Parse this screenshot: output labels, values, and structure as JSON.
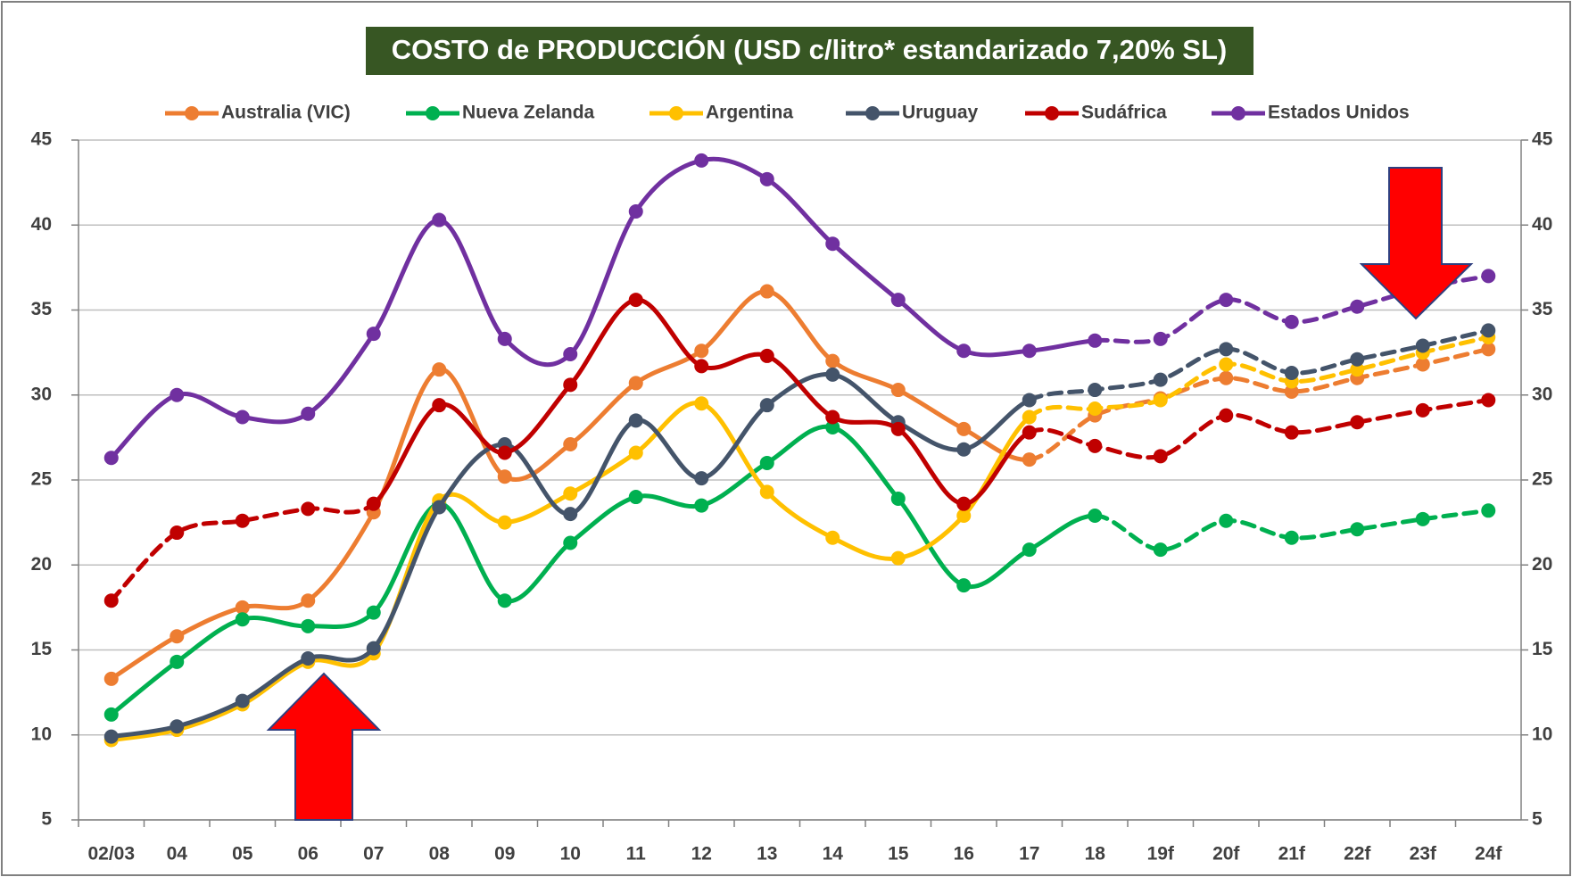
{
  "chart_data": {
    "type": "line",
    "title": "COSTO de PRODUCCIÓN (USD c/litro* estandarizado 7,20% SL)",
    "categories": [
      "02/03",
      "04",
      "05",
      "06",
      "07",
      "08",
      "09",
      "10",
      "11",
      "12",
      "13",
      "14",
      "15",
      "16",
      "17",
      "18",
      "19f",
      "20f",
      "21f",
      "22f",
      "23f",
      "24f"
    ],
    "ylim": [
      5,
      45
    ],
    "yticks": [
      5,
      10,
      15,
      20,
      25,
      30,
      35,
      40,
      45
    ],
    "y2lim": [
      5,
      45
    ],
    "y2ticks": [
      5,
      10,
      15,
      20,
      25,
      30,
      35,
      40,
      45
    ],
    "grid": true,
    "legend": "top",
    "series": [
      {
        "name": "Australia (VIC)",
        "color": "#ed7d31",
        "dashed_from": "17",
        "values": [
          13.3,
          15.8,
          17.5,
          17.9,
          23.1,
          31.5,
          25.2,
          27.1,
          30.7,
          32.6,
          36.1,
          32.0,
          30.3,
          28.0,
          26.2,
          28.8,
          29.8,
          31.0,
          30.2,
          31.0,
          31.8,
          32.7
        ]
      },
      {
        "name": "Nueva Zelanda",
        "color": "#00b050",
        "dashed_from": "18",
        "values": [
          11.2,
          14.3,
          16.8,
          16.4,
          17.2,
          23.6,
          17.9,
          21.3,
          24.0,
          23.5,
          26.0,
          28.1,
          23.9,
          18.8,
          20.9,
          22.9,
          20.9,
          22.6,
          21.6,
          22.1,
          22.7,
          23.2
        ]
      },
      {
        "name": "Argentina",
        "color": "#ffc000",
        "dashed_from": "17",
        "values": [
          9.7,
          10.3,
          11.8,
          14.3,
          14.8,
          23.8,
          22.5,
          24.2,
          26.6,
          29.5,
          24.3,
          21.6,
          20.4,
          22.9,
          28.7,
          29.2,
          29.7,
          31.8,
          30.8,
          31.5,
          32.5,
          33.4
        ]
      },
      {
        "name": "Uruguay",
        "color": "#44546a",
        "dashed_from": "17",
        "values": [
          9.9,
          10.5,
          12.0,
          14.5,
          15.1,
          23.4,
          27.1,
          23.0,
          28.5,
          25.1,
          29.4,
          31.2,
          28.4,
          26.8,
          29.7,
          30.3,
          30.9,
          32.7,
          31.3,
          32.1,
          32.9,
          33.8
        ]
      },
      {
        "name": "Sudáfrica",
        "color": "#c00000",
        "dashed_until": "07",
        "dashed_from": "17",
        "values": [
          17.9,
          21.9,
          22.6,
          23.3,
          23.6,
          29.4,
          26.6,
          30.6,
          35.6,
          31.7,
          32.3,
          28.7,
          28.0,
          23.6,
          27.8,
          27.0,
          26.4,
          28.8,
          27.8,
          28.4,
          29.1,
          29.7
        ]
      },
      {
        "name": "Estados Unidos",
        "color": "#7030a0",
        "dashed_from": "18",
        "values": [
          26.3,
          30.0,
          28.7,
          28.9,
          33.6,
          40.3,
          33.3,
          32.4,
          40.8,
          43.8,
          42.7,
          38.9,
          35.6,
          32.6,
          32.6,
          33.2,
          33.3,
          35.6,
          34.3,
          35.2,
          36.3,
          37.0
        ]
      }
    ]
  }
}
